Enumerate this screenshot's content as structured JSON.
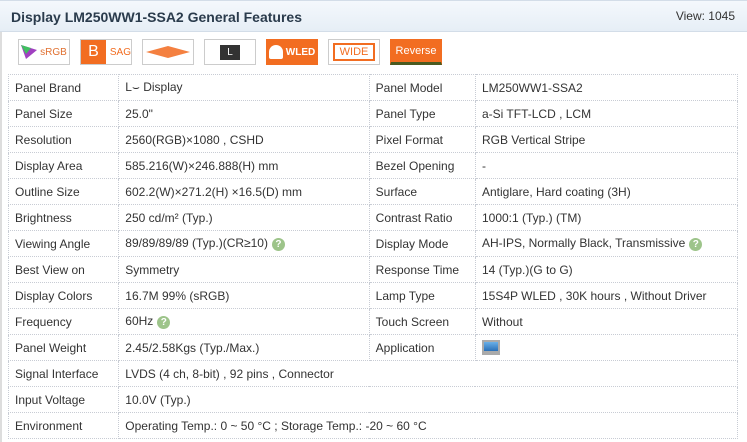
{
  "header": {
    "title": "Display LM250WW1-SSA2 General Features",
    "views": "View: 1045"
  },
  "badges": [
    {
      "name": "srgb",
      "label": "sRGB"
    },
    {
      "name": "sag",
      "label": "SAG",
      "letter": "B"
    },
    {
      "name": "viewing-angle",
      "label": ""
    },
    {
      "name": "lcm",
      "label": "L"
    },
    {
      "name": "wled",
      "label": "WLED"
    },
    {
      "name": "wide",
      "label": "WIDE"
    },
    {
      "name": "reverse",
      "label": "Reverse"
    }
  ],
  "colors": {
    "orange": "#f26d21",
    "help": "#9dc48a"
  },
  "rows": [
    {
      "l1": "Panel Brand",
      "v1": "L⌣ Display",
      "l2": "Panel Model",
      "v2": "LM250WW1-SSA2"
    },
    {
      "l1": "Panel Size",
      "v1": "25.0\"",
      "l2": "Panel Type",
      "v2": "a-Si TFT-LCD , LCM"
    },
    {
      "l1": "Resolution",
      "v1": "2560(RGB)×1080 , CSHD",
      "l2": "Pixel Format",
      "v2": "RGB Vertical Stripe"
    },
    {
      "l1": "Display Area",
      "v1": "585.216(W)×246.888(H) mm",
      "l2": "Bezel Opening",
      "v2": "-"
    },
    {
      "l1": "Outline Size",
      "v1": "602.2(W)×271.2(H) ×16.5(D) mm",
      "l2": "Surface",
      "v2": "Antiglare, Hard coating (3H)"
    },
    {
      "l1": "Brightness",
      "v1": "250 cd/m² (Typ.)",
      "l2": "Contrast Ratio",
      "v2": "1000:1 (Typ.) (TM)"
    },
    {
      "l1": "Viewing Angle",
      "v1": "89/89/89/89 (Typ.)(CR≥10)",
      "l2": "Display Mode",
      "v2": "AH-IPS, Normally Black, Transmissive"
    },
    {
      "l1": "Best View on",
      "v1": "Symmetry",
      "l2": "Response Time",
      "v2": "14 (Typ.)(G to G)"
    },
    {
      "l1": "Display Colors",
      "v1": "16.7M   99% (sRGB)",
      "l2": "Lamp Type",
      "v2": "15S4P WLED , 30K hours , Without Driver"
    },
    {
      "l1": "Frequency",
      "v1": "60Hz",
      "l2": "Touch Screen",
      "v2": "Without"
    },
    {
      "l1": "Panel Weight",
      "v1": "2.45/2.58Kgs (Typ./Max.)",
      "l2": "Application",
      "v2": ""
    }
  ],
  "full_rows": [
    {
      "l": "Signal Interface",
      "v": "LVDS (4 ch, 8-bit) , 92 pins , Connector"
    },
    {
      "l": "Input Voltage",
      "v": "10.0V (Typ.)"
    },
    {
      "l": "Environment",
      "v": "Operating Temp.: 0 ~ 50 °C ; Storage Temp.: -20 ~ 60 °C"
    }
  ],
  "help_symbol": "?"
}
